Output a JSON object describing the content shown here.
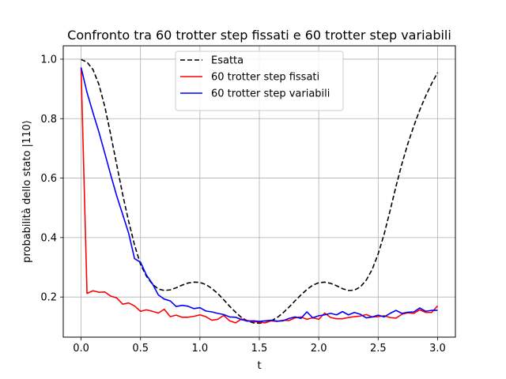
{
  "chart_data": {
    "type": "line",
    "title": "Confronto tra 60 trotter step fissati e 60 trotter step variabili",
    "xlabel": "t",
    "ylabel": "probabilità dello stato |110⟩",
    "xlim": [
      -0.15,
      3.15
    ],
    "ylim": [
      0.065,
      1.045
    ],
    "xticks": [
      0.0,
      0.5,
      1.0,
      1.5,
      2.0,
      2.5,
      3.0
    ],
    "xtick_labels": [
      "0.0",
      "0.5",
      "1.0",
      "1.5",
      "2.0",
      "2.5",
      "3.0"
    ],
    "yticks": [
      0.2,
      0.4,
      0.6,
      0.8,
      1.0
    ],
    "ytick_labels": [
      "0.2",
      "0.4",
      "0.6",
      "0.8",
      "1.0"
    ],
    "grid": true,
    "legend_position": "top-center",
    "series": [
      {
        "name": "Esatta",
        "color": "#000000",
        "dash": "dashed",
        "x": [
          0.0,
          0.05,
          0.1,
          0.15,
          0.2,
          0.25,
          0.3,
          0.35,
          0.4,
          0.45,
          0.5,
          0.55,
          0.6,
          0.65,
          0.7,
          0.75,
          0.8,
          0.85,
          0.9,
          0.95,
          1.0,
          1.05,
          1.1,
          1.15,
          1.2,
          1.25,
          1.3,
          1.35,
          1.4,
          1.45,
          1.5,
          1.55,
          1.6,
          1.65,
          1.7,
          1.75,
          1.8,
          1.85,
          1.9,
          1.95,
          2.0,
          2.05,
          2.1,
          2.15,
          2.2,
          2.25,
          2.3,
          2.35,
          2.4,
          2.45,
          2.5,
          2.55,
          2.6,
          2.65,
          2.7,
          2.75,
          2.8,
          2.85,
          2.9,
          2.95,
          3.0
        ],
        "y": [
          0.999,
          0.99,
          0.965,
          0.915,
          0.84,
          0.745,
          0.645,
          0.545,
          0.455,
          0.375,
          0.31,
          0.27,
          0.243,
          0.227,
          0.222,
          0.224,
          0.231,
          0.24,
          0.247,
          0.25,
          0.249,
          0.242,
          0.229,
          0.212,
          0.191,
          0.169,
          0.149,
          0.131,
          0.12,
          0.113,
          0.112,
          0.114,
          0.12,
          0.131,
          0.147,
          0.166,
          0.187,
          0.207,
          0.225,
          0.24,
          0.248,
          0.25,
          0.246,
          0.238,
          0.228,
          0.222,
          0.223,
          0.234,
          0.257,
          0.293,
          0.345,
          0.411,
          0.49,
          0.572,
          0.648,
          0.716,
          0.775,
          0.829,
          0.876,
          0.918,
          0.955
        ]
      },
      {
        "name": "60 trotter step fissati",
        "color": "#ff0000",
        "dash": "solid",
        "x": [
          0.0,
          0.05,
          0.1,
          0.15,
          0.2,
          0.25,
          0.3,
          0.35,
          0.4,
          0.45,
          0.5,
          0.55,
          0.6,
          0.65,
          0.7,
          0.75,
          0.8,
          0.85,
          0.9,
          0.95,
          1.0,
          1.05,
          1.1,
          1.15,
          1.2,
          1.25,
          1.3,
          1.35,
          1.4,
          1.45,
          1.5,
          1.55,
          1.6,
          1.65,
          1.7,
          1.75,
          1.8,
          1.85,
          1.9,
          1.95,
          2.0,
          2.05,
          2.1,
          2.15,
          2.2,
          2.25,
          2.3,
          2.35,
          2.4,
          2.45,
          2.5,
          2.55,
          2.6,
          2.65,
          2.7,
          2.75,
          2.8,
          2.85,
          2.9,
          2.95,
          3.0
        ],
        "y": [
          0.972,
          0.212,
          0.221,
          0.216,
          0.217,
          0.203,
          0.197,
          0.176,
          0.18,
          0.17,
          0.152,
          0.157,
          0.152,
          0.146,
          0.159,
          0.134,
          0.139,
          0.132,
          0.132,
          0.135,
          0.14,
          0.134,
          0.122,
          0.125,
          0.138,
          0.12,
          0.113,
          0.126,
          0.121,
          0.117,
          0.116,
          0.113,
          0.12,
          0.118,
          0.122,
          0.121,
          0.13,
          0.133,
          0.125,
          0.13,
          0.125,
          0.146,
          0.131,
          0.127,
          0.127,
          0.131,
          0.134,
          0.136,
          0.141,
          0.133,
          0.134,
          0.137,
          0.131,
          0.129,
          0.142,
          0.147,
          0.145,
          0.157,
          0.148,
          0.148,
          0.17
        ]
      },
      {
        "name": "60 trotter step variabili",
        "color": "#0000ff",
        "dash": "solid",
        "x": [
          0.0,
          0.05,
          0.1,
          0.15,
          0.2,
          0.25,
          0.3,
          0.35,
          0.4,
          0.45,
          0.5,
          0.55,
          0.6,
          0.65,
          0.7,
          0.75,
          0.8,
          0.85,
          0.9,
          0.95,
          1.0,
          1.05,
          1.1,
          1.15,
          1.2,
          1.25,
          1.3,
          1.35,
          1.4,
          1.45,
          1.5,
          1.55,
          1.6,
          1.65,
          1.7,
          1.75,
          1.8,
          1.85,
          1.9,
          1.95,
          2.0,
          2.05,
          2.1,
          2.15,
          2.2,
          2.25,
          2.3,
          2.35,
          2.4,
          2.45,
          2.5,
          2.55,
          2.6,
          2.65,
          2.7,
          2.75,
          2.8,
          2.85,
          2.9,
          2.95,
          3.0
        ],
        "y": [
          0.972,
          0.888,
          0.82,
          0.755,
          0.683,
          0.61,
          0.54,
          0.478,
          0.415,
          0.329,
          0.317,
          0.274,
          0.245,
          0.207,
          0.193,
          0.187,
          0.168,
          0.172,
          0.169,
          0.161,
          0.164,
          0.153,
          0.15,
          0.145,
          0.141,
          0.133,
          0.132,
          0.124,
          0.119,
          0.12,
          0.118,
          0.12,
          0.122,
          0.119,
          0.12,
          0.128,
          0.133,
          0.128,
          0.15,
          0.13,
          0.137,
          0.14,
          0.145,
          0.14,
          0.151,
          0.14,
          0.148,
          0.142,
          0.13,
          0.133,
          0.139,
          0.133,
          0.145,
          0.155,
          0.145,
          0.149,
          0.15,
          0.163,
          0.152,
          0.155,
          0.155
        ]
      }
    ]
  }
}
